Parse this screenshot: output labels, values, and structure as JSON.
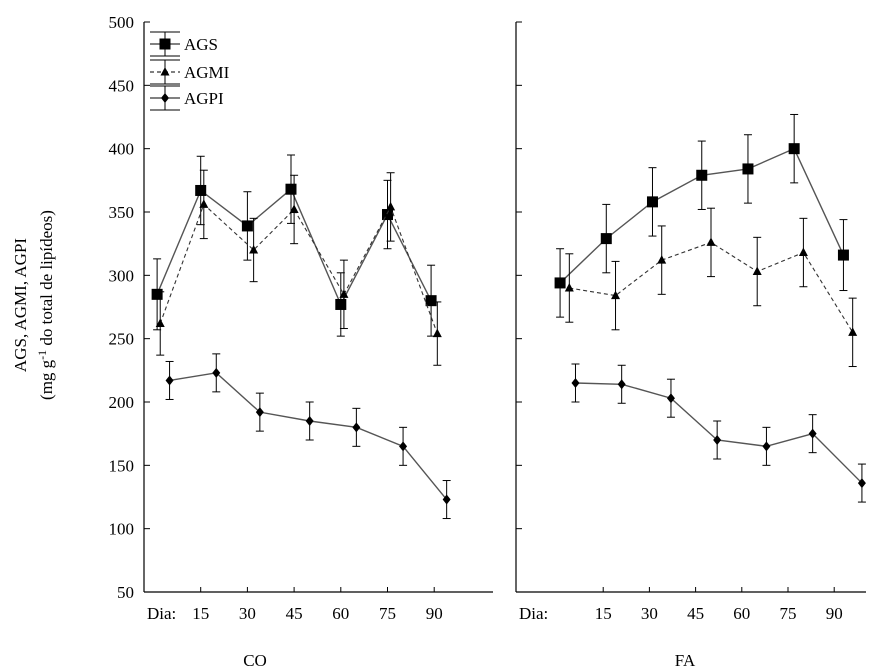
{
  "chart_data": {
    "type": "line",
    "ylabel_line1": "AGS, AGMI, AGPI",
    "ylabel_line2_prefix": "(mg g",
    "ylabel_line2_sup": "-1",
    "ylabel_line2_suffix": " do total de lipídeos)",
    "ylim": [
      50,
      500
    ],
    "yticks": [
      50,
      100,
      150,
      200,
      250,
      300,
      350,
      400,
      450,
      500
    ],
    "x_prefix": "Dia:",
    "xticks": [
      15,
      30,
      45,
      60,
      75,
      90
    ],
    "legend": [
      {
        "name": "AGS",
        "marker": "square",
        "dash": false
      },
      {
        "name": "AGMI",
        "marker": "triangle",
        "dash": true
      },
      {
        "name": "AGPI",
        "marker": "diamond",
        "dash": false
      }
    ],
    "panels": [
      {
        "name": "CO",
        "series": [
          {
            "name": "AGS",
            "x": [
              1,
              15,
              30,
              44,
              60,
              75,
              89
            ],
            "y": [
              285,
              367,
              339,
              368,
              277,
              348,
              280
            ],
            "err": [
              28,
              27,
              27,
              27,
              25,
              27,
              28
            ]
          },
          {
            "name": "AGMI",
            "x": [
              2,
              16,
              32,
              45,
              61,
              76,
              91
            ],
            "y": [
              262,
              356,
              320,
              352,
              285,
              354,
              254
            ],
            "err": [
              25,
              27,
              25,
              27,
              27,
              27,
              25
            ]
          },
          {
            "name": "AGPI",
            "x": [
              5,
              20,
              34,
              50,
              65,
              80,
              94
            ],
            "y": [
              217,
              223,
              192,
              185,
              180,
              165,
              123
            ],
            "err": [
              15,
              15,
              15,
              15,
              15,
              15,
              15
            ]
          }
        ]
      },
      {
        "name": "FA",
        "series": [
          {
            "name": "AGS",
            "x": [
              1,
              16,
              31,
              47,
              62,
              77,
              93
            ],
            "y": [
              294,
              329,
              358,
              379,
              384,
              400,
              316
            ],
            "err": [
              27,
              27,
              27,
              27,
              27,
              27,
              28
            ]
          },
          {
            "name": "AGMI",
            "x": [
              4,
              19,
              34,
              50,
              65,
              80,
              96
            ],
            "y": [
              290,
              284,
              312,
              326,
              303,
              318,
              255
            ],
            "err": [
              27,
              27,
              27,
              27,
              27,
              27,
              27
            ]
          },
          {
            "name": "AGPI",
            "x": [
              6,
              21,
              37,
              52,
              68,
              83,
              99
            ],
            "y": [
              215,
              214,
              203,
              170,
              165,
              175,
              136
            ],
            "err": [
              15,
              15,
              15,
              15,
              15,
              15,
              15
            ]
          }
        ]
      }
    ]
  }
}
